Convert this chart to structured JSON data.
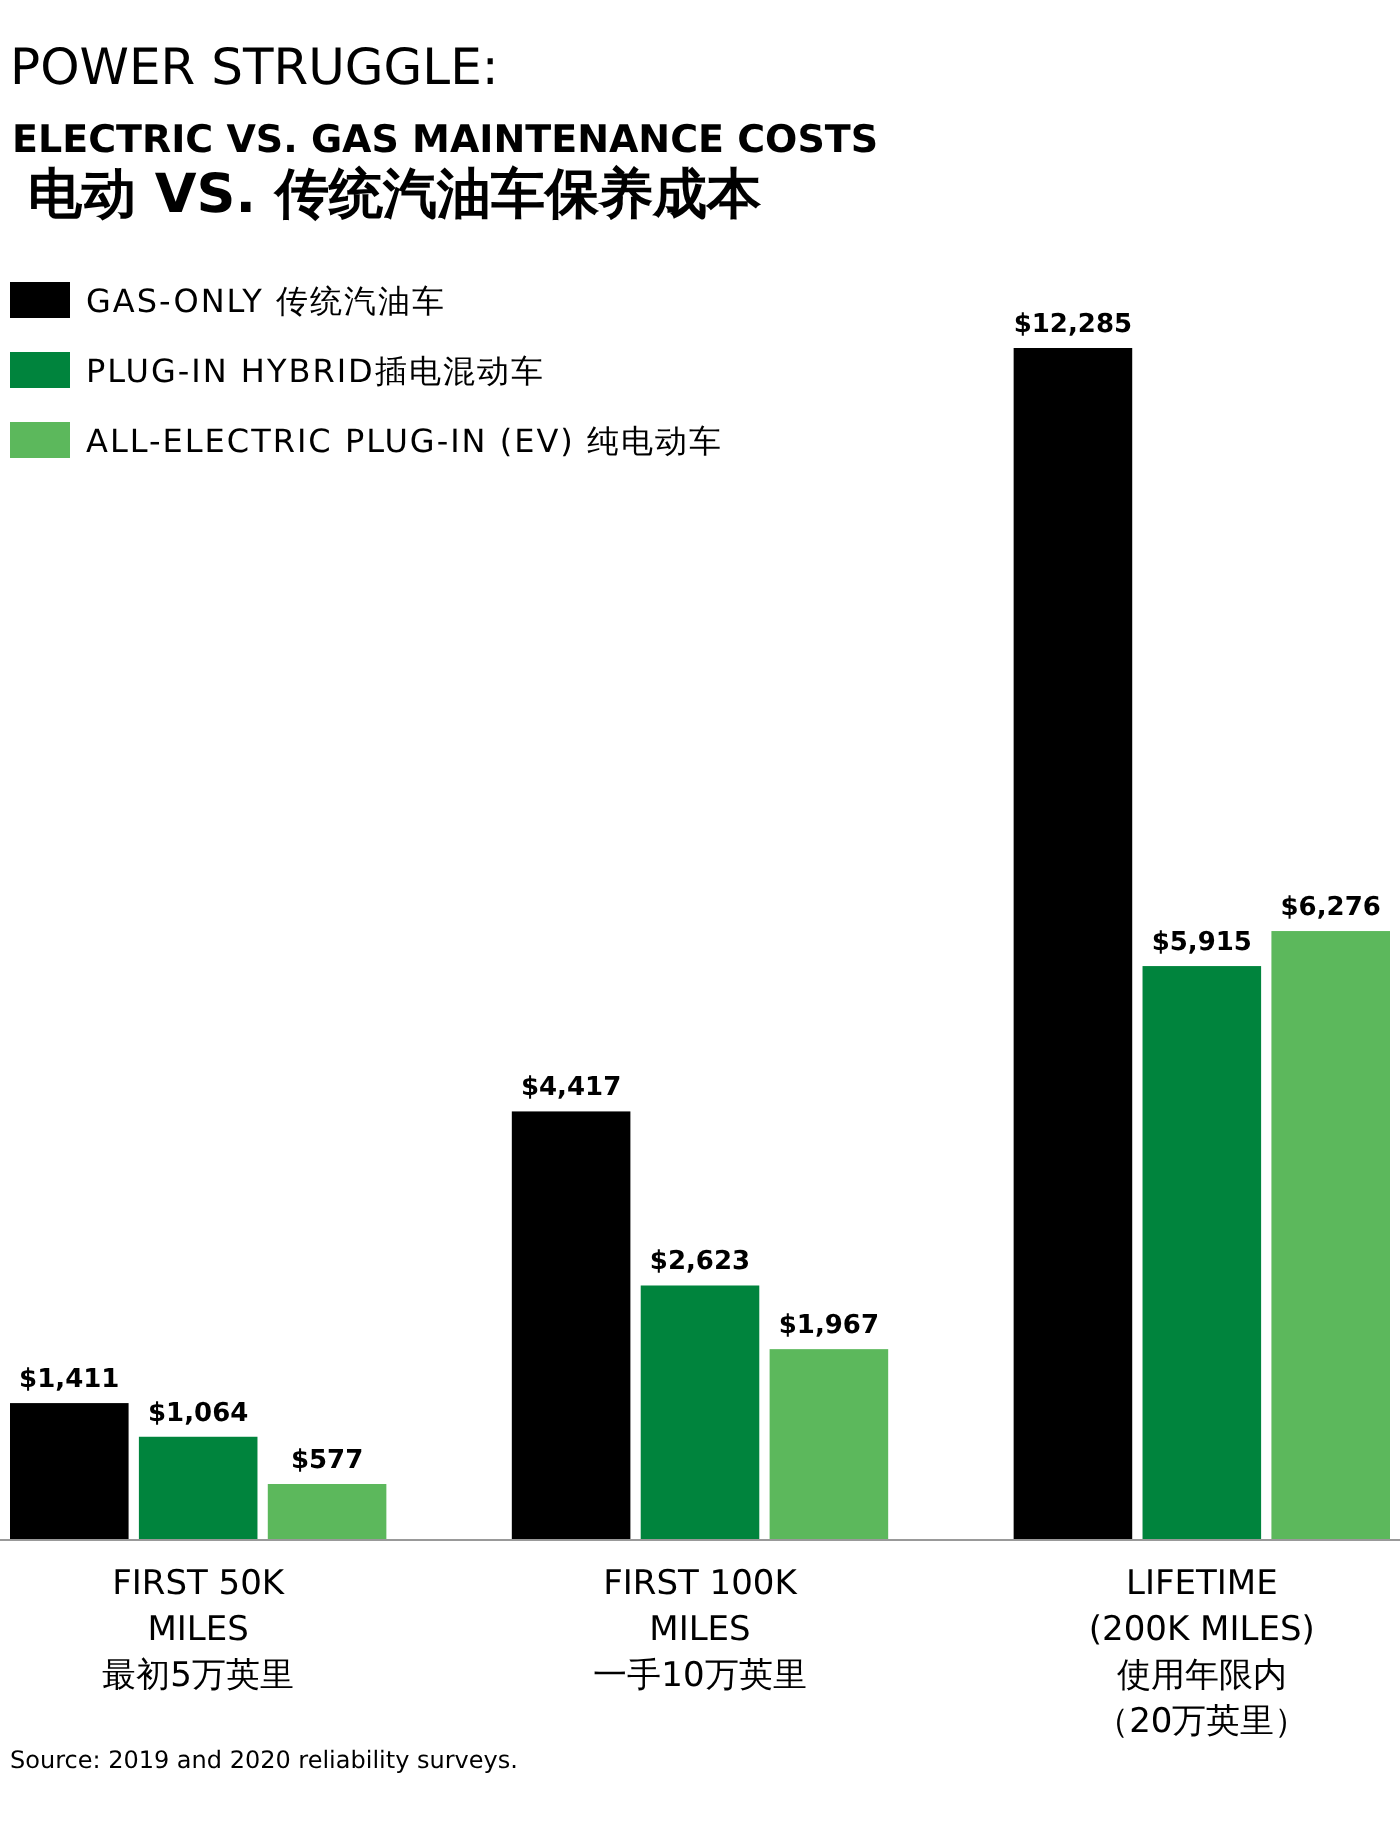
{
  "chart_data": {
    "type": "bar",
    "title": "POWER STRUGGLE:",
    "subtitle": "ELECTRIC VS. GAS MAINTENANCE COSTS\n电动 VS. 传统汽油车保养成本",
    "categories": [
      "FIRST 50K\nMILES\n最初5万英里",
      "FIRST 100K\nMILES\n一手10万英里",
      "LIFETIME\n(200K MILES)\n使用年限内（20万英里）"
    ],
    "series": [
      {
        "name": "GAS-ONLY 传统汽油车",
        "color": "#000000",
        "values": [
          1411,
          4417,
          12285
        ],
        "value_labels": [
          "$1,411",
          "$4,417",
          "$12,285"
        ]
      },
      {
        "name": "PLUG-IN HYBRID插电混动车",
        "color": "#00843d",
        "values": [
          1064,
          2623,
          5915
        ],
        "value_labels": [
          "$1,064",
          "$2,623",
          "$5,915"
        ]
      },
      {
        "name": "ALL-ELECTRIC PLUG-IN (EV) 纯电动车",
        "color": "#5cb85c",
        "values": [
          577,
          1967,
          6276
        ],
        "value_labels": [
          "$577",
          "$1,967",
          "$6,276"
        ]
      }
    ],
    "legend": "top left",
    "annotations": [
      "Source: 2019 and 2020 reliability surveys."
    ]
  }
}
